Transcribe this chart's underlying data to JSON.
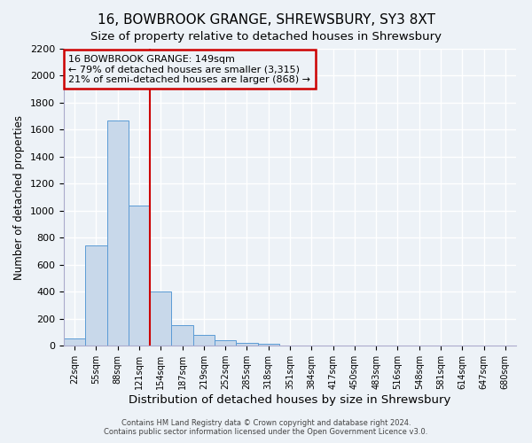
{
  "title": "16, BOWBROOK GRANGE, SHREWSBURY, SY3 8XT",
  "subtitle": "Size of property relative to detached houses in Shrewsbury",
  "xlabel": "Distribution of detached houses by size in Shrewsbury",
  "ylabel": "Number of detached properties",
  "bar_labels": [
    "22sqm",
    "55sqm",
    "88sqm",
    "121sqm",
    "154sqm",
    "187sqm",
    "219sqm",
    "252sqm",
    "285sqm",
    "318sqm",
    "351sqm",
    "384sqm",
    "417sqm",
    "450sqm",
    "483sqm",
    "516sqm",
    "548sqm",
    "581sqm",
    "614sqm",
    "647sqm",
    "680sqm"
  ],
  "bar_heights": [
    50,
    745,
    1670,
    1040,
    400,
    148,
    78,
    40,
    22,
    15,
    0,
    0,
    0,
    0,
    0,
    0,
    0,
    0,
    0,
    0,
    0
  ],
  "bar_color": "#c8d8ea",
  "bar_edge_color": "#5b9bd5",
  "vline_color": "#cc0000",
  "annotation_line1": "16 BOWBROOK GRANGE: 149sqm",
  "annotation_line2": "← 79% of detached houses are smaller (3,315)",
  "annotation_line3": "21% of semi-detached houses are larger (868) →",
  "annotation_box_edge_color": "#cc0000",
  "ylim": [
    0,
    2200
  ],
  "yticks": [
    0,
    200,
    400,
    600,
    800,
    1000,
    1200,
    1400,
    1600,
    1800,
    2000,
    2200
  ],
  "background_color": "#edf2f7",
  "grid_color": "#ffffff",
  "footer1": "Contains HM Land Registry data © Crown copyright and database right 2024.",
  "footer2": "Contains public sector information licensed under the Open Government Licence v3.0.",
  "title_fontsize": 11,
  "subtitle_fontsize": 9.5,
  "ylabel_fontsize": 8.5,
  "xlabel_fontsize": 9.5
}
